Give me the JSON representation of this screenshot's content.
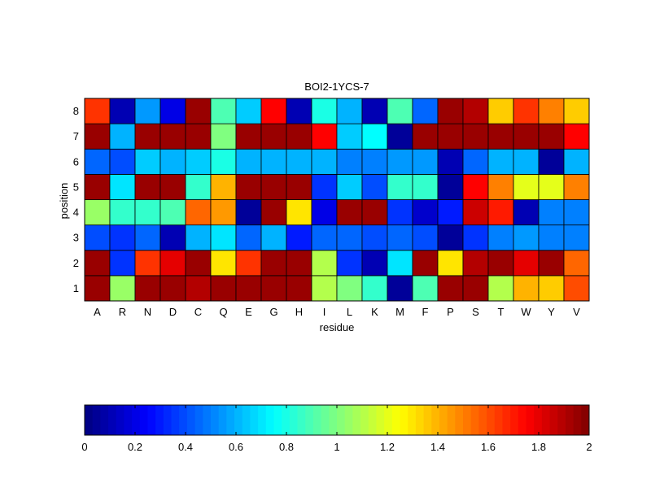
{
  "chart_data": {
    "type": "heatmap",
    "title": "BOI2-1YCS-7",
    "xlabel": "residue",
    "ylabel": "position",
    "x_categories": [
      "A",
      "R",
      "N",
      "D",
      "C",
      "Q",
      "E",
      "G",
      "H",
      "I",
      "L",
      "K",
      "M",
      "F",
      "P",
      "S",
      "T",
      "W",
      "Y",
      "V"
    ],
    "y_categories": [
      "1",
      "2",
      "3",
      "4",
      "5",
      "6",
      "7",
      "8"
    ],
    "values": [
      [
        1.95,
        1.05,
        1.95,
        1.95,
        1.9,
        1.95,
        1.95,
        1.95,
        1.95,
        1.1,
        1.0,
        0.85,
        0.05,
        0.9,
        1.95,
        1.95,
        1.1,
        1.4,
        1.35,
        1.6
      ],
      [
        1.95,
        0.35,
        1.65,
        1.8,
        1.95,
        1.3,
        1.65,
        1.95,
        1.95,
        1.1,
        0.35,
        0.1,
        0.7,
        1.95,
        1.3,
        1.9,
        1.95,
        1.8,
        1.95,
        1.55
      ],
      [
        0.4,
        0.35,
        0.45,
        0.1,
        0.6,
        0.7,
        0.45,
        0.6,
        0.3,
        0.45,
        0.45,
        0.4,
        0.45,
        0.4,
        0.05,
        0.35,
        0.5,
        0.55,
        0.5,
        0.5
      ],
      [
        1.05,
        0.85,
        0.85,
        0.9,
        1.55,
        1.45,
        0.05,
        1.95,
        1.3,
        0.2,
        1.95,
        1.95,
        0.35,
        0.15,
        0.3,
        1.85,
        1.7,
        0.1,
        0.5,
        0.5
      ],
      [
        1.95,
        0.7,
        1.95,
        1.95,
        0.85,
        1.4,
        1.95,
        1.95,
        1.95,
        0.35,
        0.65,
        0.4,
        0.85,
        0.85,
        0.05,
        1.75,
        1.5,
        1.2,
        1.2,
        1.5
      ],
      [
        0.45,
        0.4,
        0.65,
        0.6,
        0.65,
        0.8,
        0.6,
        0.6,
        0.6,
        0.6,
        0.5,
        0.5,
        0.55,
        0.55,
        0.1,
        0.45,
        0.6,
        0.6,
        0.05,
        0.6
      ],
      [
        1.95,
        0.6,
        1.95,
        1.95,
        1.95,
        1.0,
        1.95,
        1.95,
        1.95,
        1.75,
        0.65,
        0.75,
        0.05,
        1.95,
        1.95,
        1.95,
        1.95,
        1.95,
        1.95,
        1.75
      ],
      [
        1.65,
        0.1,
        0.55,
        0.2,
        1.95,
        0.9,
        0.65,
        1.75,
        0.1,
        0.8,
        0.6,
        0.1,
        0.9,
        0.45,
        1.95,
        1.9,
        1.35,
        1.65,
        1.5,
        1.35
      ]
    ],
    "clim": [
      0,
      2
    ],
    "colormap": "jet",
    "colorbar": {
      "location": "bottom",
      "ticks": [
        "0",
        "0.2",
        "0.4",
        "0.6",
        "0.8",
        "1",
        "1.2",
        "1.4",
        "1.6",
        "1.8",
        "2"
      ],
      "levels": 64
    },
    "grid": false
  }
}
